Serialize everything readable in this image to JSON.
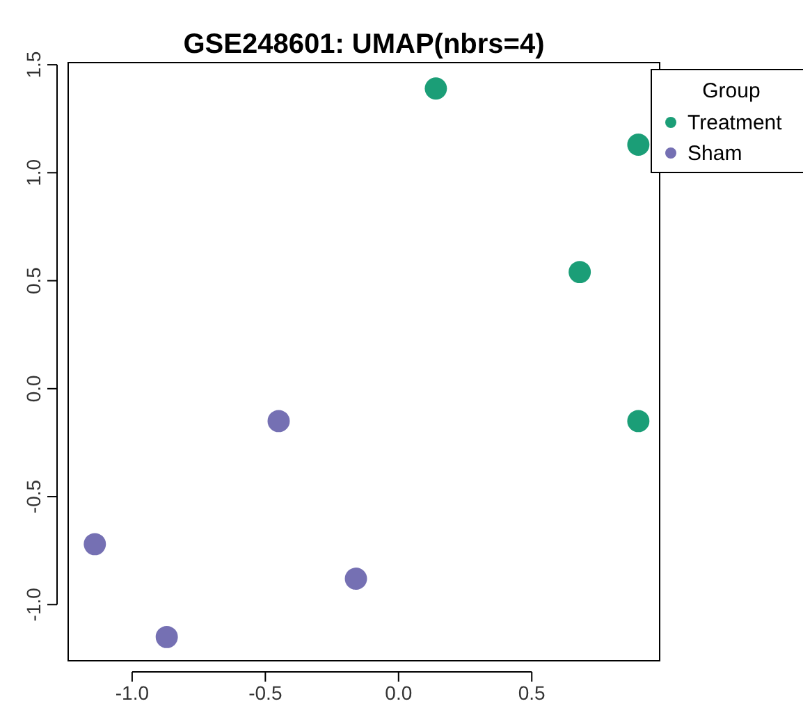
{
  "chart_data": {
    "type": "scatter",
    "title": "GSE248601: UMAP(nbrs=4)",
    "legend_title": "Group",
    "legend": "top right",
    "marker": "circle",
    "xlim": [
      -1.24,
      0.98
    ],
    "xticks": [
      {
        "value": -1,
        "label": "-1.0"
      },
      {
        "value": -0.5,
        "label": "-0.5"
      },
      {
        "value": 0,
        "label": "0.0"
      },
      {
        "value": 0.5,
        "label": "0.5"
      }
    ],
    "ylim": [
      -1.26,
      1.51
    ],
    "yticks": [
      {
        "value": -1,
        "label": "-1.0"
      },
      {
        "value": -0.5,
        "label": "-0.5"
      },
      {
        "value": 0,
        "label": "0.0"
      },
      {
        "value": 0.5,
        "label": "0.5"
      },
      {
        "value": 1,
        "label": "1.0"
      },
      {
        "value": 1.5,
        "label": "1.5"
      }
    ],
    "series": [
      {
        "name": "Treatment",
        "color": "#1b9e77",
        "x": [
          0.14,
          0.9,
          0.68,
          0.9
        ],
        "values": [
          1.39,
          1.13,
          0.54,
          -0.15
        ]
      },
      {
        "name": "Sham",
        "color": "#7570b3",
        "x": [
          -0.45,
          -1.14,
          -0.87,
          -0.16
        ],
        "values": [
          -0.15,
          -0.72,
          -1.15,
          -0.88
        ]
      }
    ]
  }
}
